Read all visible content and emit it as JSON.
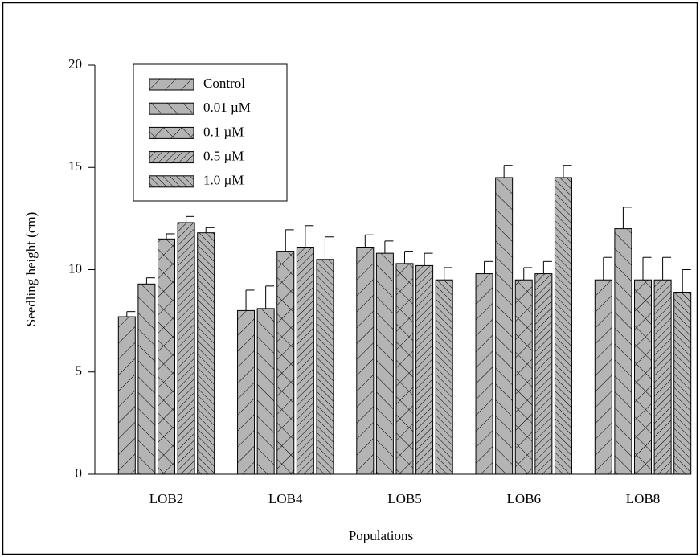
{
  "chart_data": {
    "type": "bar",
    "x_label": "Populations",
    "y_label": "Seedling height (cm)",
    "categories": [
      "LOB2",
      "LOB4",
      "LOB5",
      "LOB6",
      "LOB8"
    ],
    "series": [
      {
        "name": "Control",
        "color": "#b4b4b4",
        "hatch": "forward",
        "values": [
          7.7,
          8.0,
          11.1,
          9.8,
          9.5
        ],
        "errors": [
          0.25,
          1.0,
          0.6,
          0.6,
          1.1
        ]
      },
      {
        "name": "0.01 µM",
        "color": "#b4b4b4",
        "hatch": "backward",
        "values": [
          9.3,
          8.1,
          10.8,
          14.5,
          12.0
        ],
        "errors": [
          0.3,
          1.1,
          0.6,
          0.6,
          1.05
        ]
      },
      {
        "name": "0.1 µM",
        "color": "#b4b4b4",
        "hatch": "cross",
        "values": [
          11.5,
          10.9,
          10.3,
          9.5,
          9.5
        ],
        "errors": [
          0.25,
          1.05,
          0.6,
          0.6,
          1.1
        ]
      },
      {
        "name": "0.5 µM",
        "color": "#b4b4b4",
        "hatch": "dense-forward",
        "values": [
          12.3,
          11.1,
          10.2,
          9.8,
          9.5
        ],
        "errors": [
          0.3,
          1.05,
          0.6,
          0.6,
          1.1
        ]
      },
      {
        "name": "1.0 µM",
        "color": "#b4b4b4",
        "hatch": "dense-backward",
        "values": [
          11.8,
          10.5,
          9.5,
          14.5,
          8.9
        ],
        "errors": [
          0.25,
          1.1,
          0.6,
          0.6,
          1.1
        ]
      }
    ],
    "ylim": [
      0,
      20
    ],
    "yticks": [
      0,
      5,
      10,
      15,
      20
    ],
    "grid": false,
    "legend": "upper left"
  }
}
